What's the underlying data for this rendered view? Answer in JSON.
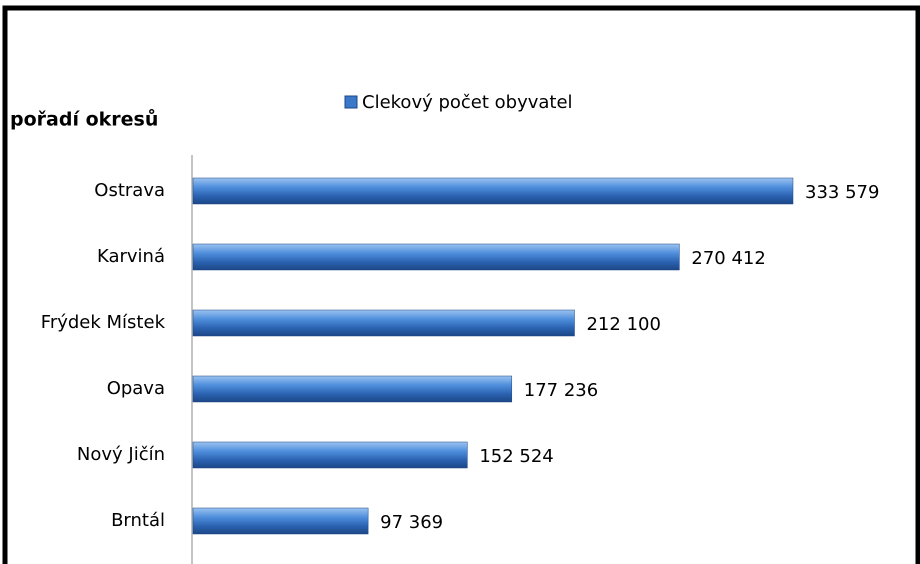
{
  "chart_data": {
    "type": "bar",
    "orientation": "horizontal",
    "ylabel": "pořadí okresů",
    "series": [
      {
        "name": "Clekový počet obyvatel",
        "color": "#3a78c9",
        "values": [
          333579,
          270412,
          212100,
          177236,
          152524,
          97369
        ],
        "value_labels": [
          "333 579",
          "270 412",
          "212 100",
          "177 236",
          "152 524",
          "97 369"
        ]
      }
    ],
    "categories": [
      "Ostrava",
      "Karviná",
      "Frýdek Místek",
      "Opava",
      "Nový Jičín",
      "Brntál"
    ]
  }
}
